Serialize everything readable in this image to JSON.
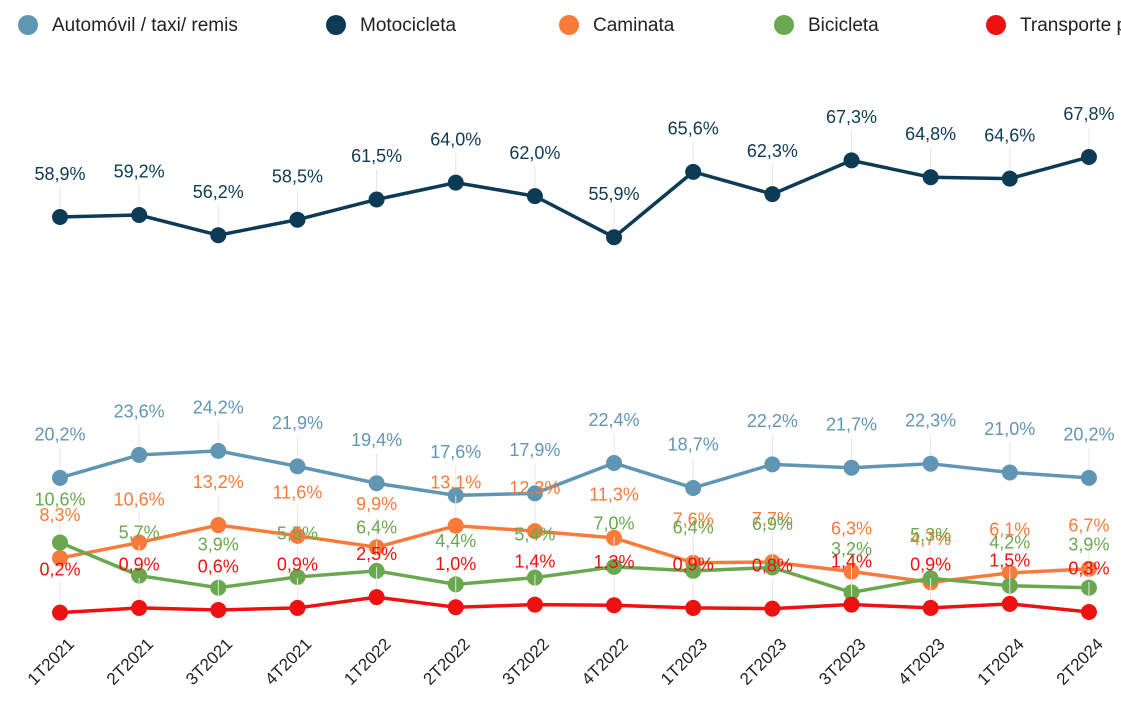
{
  "chart_data": {
    "type": "line",
    "categories": [
      "1T2021",
      "2T2021",
      "3T2021",
      "4T2021",
      "1T2022",
      "2T2022",
      "3T2022",
      "4T2022",
      "1T2023",
      "2T2023",
      "3T2023",
      "4T2023",
      "1T2024",
      "2T2024"
    ],
    "series": [
      {
        "name": "Automóvil / taxi/ remis",
        "color": "#6096b4",
        "values": [
          20.2,
          23.6,
          24.2,
          21.9,
          19.4,
          17.6,
          17.9,
          22.4,
          18.7,
          22.2,
          21.7,
          22.3,
          21.0,
          20.2
        ],
        "value_labels": [
          "20,2%",
          "23,6%",
          "24,2%",
          "21,9%",
          "19,4%",
          "17,6%",
          "17,9%",
          "22,4%",
          "18,7%",
          "22,2%",
          "21,7%",
          "22,3%",
          "21,0%",
          "20,2%"
        ]
      },
      {
        "name": "Motocicleta",
        "color": "#0d3b55",
        "values": [
          58.9,
          59.2,
          56.2,
          58.5,
          61.5,
          64.0,
          62.0,
          55.9,
          65.6,
          62.3,
          67.3,
          64.8,
          64.6,
          67.8
        ],
        "value_labels": [
          "58,9%",
          "59,2%",
          "56,2%",
          "58,5%",
          "61,5%",
          "64,0%",
          "62,0%",
          "55,9%",
          "65,6%",
          "62,3%",
          "67,3%",
          "64,8%",
          "64,6%",
          "67,8%"
        ]
      },
      {
        "name": "Caminata",
        "color": "#f97a3a",
        "values": [
          8.3,
          10.6,
          13.2,
          11.6,
          9.9,
          13.1,
          12.3,
          11.3,
          7.6,
          7.7,
          6.3,
          4.7,
          6.1,
          6.7
        ],
        "value_labels": [
          "8,3%",
          "10,6%",
          "13,2%",
          "11,6%",
          "9,9%",
          "13,1%",
          "12,3%",
          "11,3%",
          "7,6%",
          "7,7%",
          "6,3%",
          "4,7%",
          "6,1%",
          "6,7%"
        ]
      },
      {
        "name": "Bicicleta",
        "color": "#6aa84f",
        "values": [
          10.6,
          5.7,
          3.9,
          5.5,
          6.4,
          4.4,
          5.4,
          7.0,
          6.4,
          6.9,
          3.2,
          5.3,
          4.2,
          3.9
        ],
        "value_labels": [
          "10,6%",
          "5,7%",
          "3,9%",
          "5,5%",
          "6,4%",
          "4,4%",
          "5,4%",
          "7,0%",
          "6,4%",
          "6,9%",
          "3,2%",
          "5,3%",
          "4,2%",
          "3,9%"
        ]
      },
      {
        "name": "Transporte público",
        "color": "#ee1111",
        "values": [
          0.2,
          0.9,
          0.6,
          0.9,
          2.5,
          1.0,
          1.4,
          1.3,
          0.9,
          0.8,
          1.4,
          0.9,
          1.5,
          0.3
        ],
        "value_labels": [
          "0,2%",
          "0,9%",
          "0,6%",
          "0,9%",
          "2,5%",
          "1,0%",
          "1,4%",
          "1,3%",
          "0,9%",
          "0,8%",
          "1,4%",
          "0,9%",
          "1,5%",
          "0,3%"
        ]
      }
    ]
  }
}
